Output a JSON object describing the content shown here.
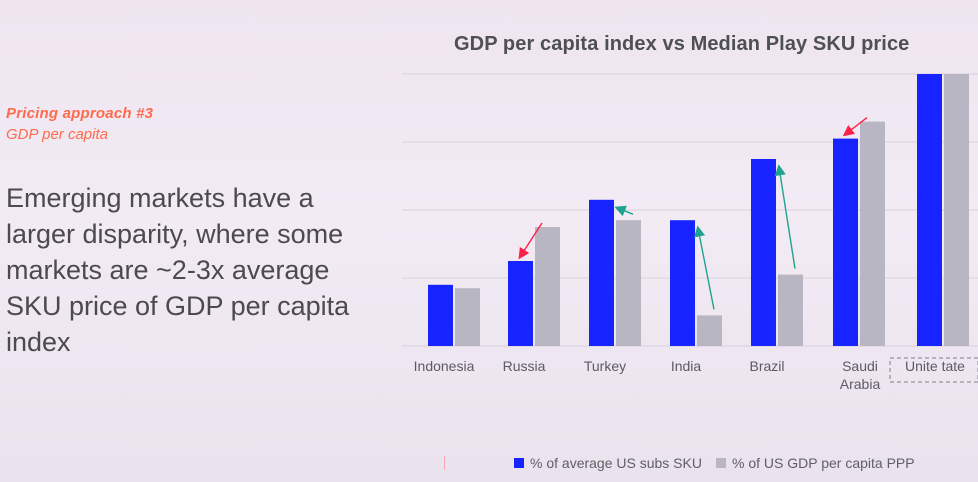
{
  "slide": {
    "kicker": "Pricing approach #3",
    "kicker_sub": "GDP per capita",
    "headline": "Emerging markets have a larger disparity, where some markets are ~2-3x average SKU price of GDP per capita index"
  },
  "colors": {
    "series_1": "#1724ff",
    "series_2": "#b9b6c4",
    "grid": "#d8d2de",
    "arrow_red": "#ff1f4b",
    "arrow_teal": "#1fa38f",
    "label": "#5a5b63"
  },
  "chart_data": {
    "type": "bar",
    "title": "GDP per capita index vs Median Play SKU price",
    "categories": [
      "Indonesia",
      "Russia",
      "Turkey",
      "India",
      "Brazil",
      "Saudi Arabia",
      "United States"
    ],
    "series": [
      {
        "name": "% of average US subs SKU",
        "values": [
          18,
          25,
          43,
          37,
          55,
          61,
          80
        ]
      },
      {
        "name": "% of US GDP per capita PPP",
        "values": [
          17,
          35,
          37,
          9,
          21,
          66,
          80
        ]
      }
    ],
    "ylim": [
      0,
      80
    ],
    "grid": true,
    "legend": "bottom",
    "arrows": [
      {
        "category": "Russia",
        "direction": "down-left",
        "color": "arrow_red"
      },
      {
        "category": "Turkey",
        "direction": "up-left",
        "color": "arrow_teal"
      },
      {
        "category": "India",
        "direction": "up-left",
        "color": "arrow_teal"
      },
      {
        "category": "Brazil",
        "direction": "up-left",
        "color": "arrow_teal"
      },
      {
        "category": "Saudi Arabia",
        "direction": "down-left",
        "color": "arrow_red"
      }
    ]
  },
  "visible_category_labels": [
    "Indonesia",
    "Russia",
    "Turkey",
    "India",
    "Brazil",
    "Saudi Arabia",
    "Unite  tate"
  ]
}
